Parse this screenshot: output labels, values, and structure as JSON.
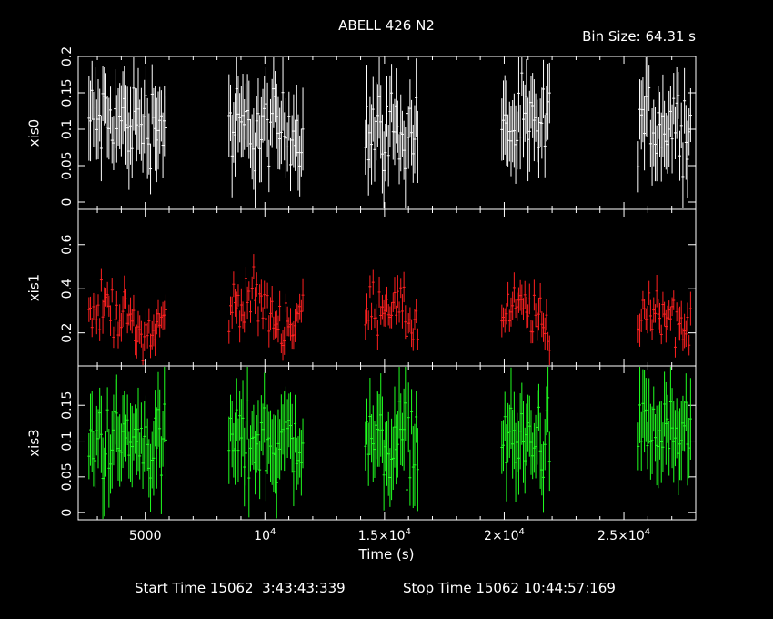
{
  "chart_data": {
    "type": "scatter",
    "title": "ABELL 426 N2",
    "bin_size_label": "Bin Size: 64.31 s",
    "xlabel": "Time (s)",
    "xlim": [
      2200,
      28000
    ],
    "x_ticks": [
      {
        "value": 5000,
        "label": "5000"
      },
      {
        "value": 10000,
        "label": "10",
        "sup": "4"
      },
      {
        "value": 15000,
        "label": "1.5×10",
        "sup": "4"
      },
      {
        "value": 20000,
        "label": "2×10",
        "sup": "4"
      },
      {
        "value": 25000,
        "label": "2.5×10",
        "sup": "4"
      }
    ],
    "footer": {
      "start": "Start Time 15062  3:43:43:339",
      "stop": "Stop Time 15062 10:44:57:169"
    },
    "segments": [
      [
        2650,
        5900
      ],
      [
        8500,
        11600
      ],
      [
        14200,
        16400
      ],
      [
        19900,
        21900
      ],
      [
        25600,
        27800
      ]
    ],
    "panels": [
      {
        "name": "xis0",
        "color": "#ffffff",
        "ylim": [
          -0.01,
          0.2
        ],
        "y_ticks": [
          {
            "value": 0,
            "label": "0"
          },
          {
            "value": 0.05,
            "label": "0.05"
          },
          {
            "value": 0.1,
            "label": "0.1"
          },
          {
            "value": 0.15,
            "label": "0.15"
          },
          {
            "value": 0.2,
            "label": "0.2"
          }
        ],
        "levels": [
          0.11,
          0.1,
          0.1,
          0.1,
          0.11
        ],
        "scatter": 0.035,
        "err": 0.045
      },
      {
        "name": "xis1",
        "color": "#ff2020",
        "ylim": [
          0.05,
          0.76
        ],
        "y_ticks": [
          {
            "value": 0.2,
            "label": "0.2"
          },
          {
            "value": 0.4,
            "label": "0.4"
          },
          {
            "value": 0.6,
            "label": "0.6"
          }
        ],
        "levels": [
          0.26,
          0.3,
          0.28,
          0.25,
          0.25
        ],
        "scatter": 0.07,
        "err": 0.06
      },
      {
        "name": "xis3",
        "color": "#20ff20",
        "ylim": [
          -0.01,
          0.205
        ],
        "y_ticks": [
          {
            "value": 0,
            "label": "0"
          },
          {
            "value": 0.05,
            "label": "0.05"
          },
          {
            "value": 0.1,
            "label": "0.1"
          },
          {
            "value": 0.15,
            "label": "0.15"
          }
        ],
        "levels": [
          0.1,
          0.1,
          0.1,
          0.1,
          0.11
        ],
        "scatter": 0.035,
        "err": 0.045
      }
    ]
  }
}
